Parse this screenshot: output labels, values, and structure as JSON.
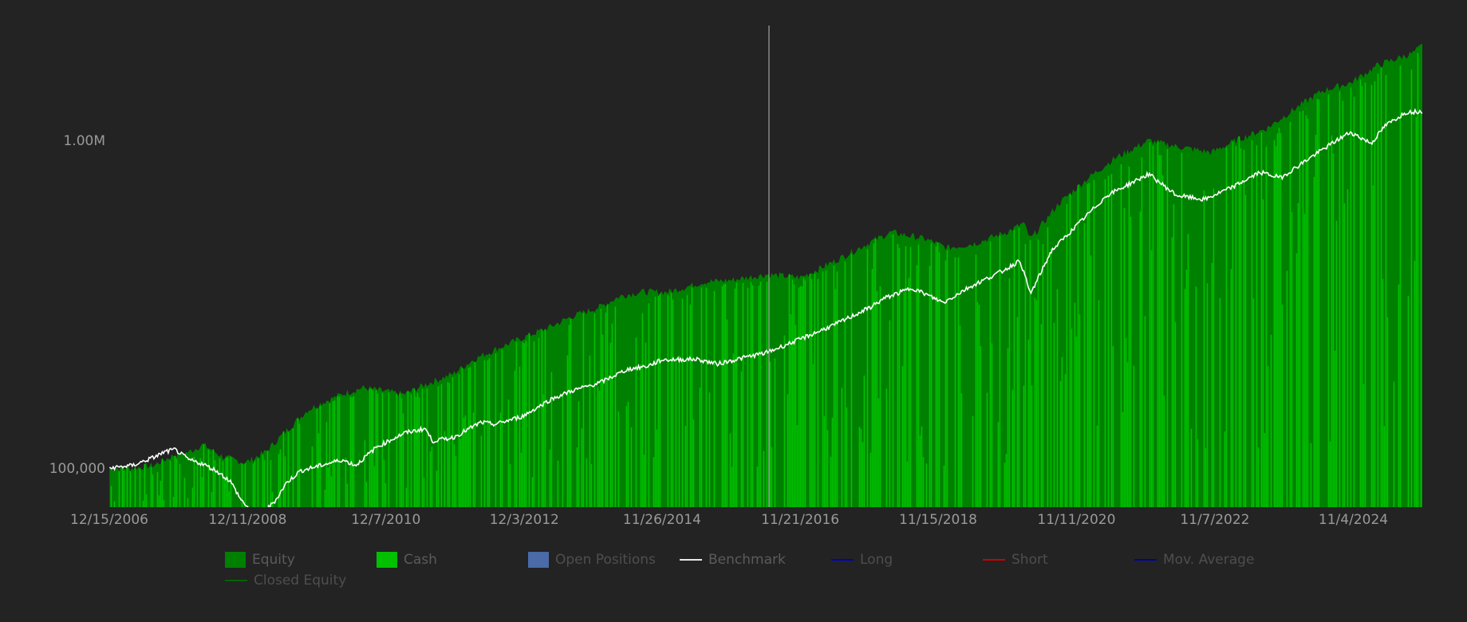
{
  "chart_data": {
    "type": "area",
    "x_axis": {
      "tick_labels": [
        "12/15/2006",
        "12/11/2008",
        "12/7/2010",
        "12/3/2012",
        "11/26/2014",
        "11/21/2016",
        "11/15/2018",
        "11/11/2020",
        "11/7/2022",
        "11/4/2024"
      ],
      "range": [
        "12/15/2006",
        "11/2025"
      ]
    },
    "y_axis": {
      "scale": "log",
      "tick_labels": [
        "1.00M",
        "100,000"
      ],
      "tick_values": [
        1000000,
        100000
      ],
      "range": [
        76000,
        2400000
      ]
    },
    "grid": false,
    "legend_placement": "bottom",
    "crosshair_x": "2016.44",
    "series": [
      {
        "name": "Equity",
        "color": "#008000",
        "x": [
          2006.96,
          2007.3,
          2007.6,
          2007.9,
          2008.1,
          2008.3,
          2008.6,
          2008.9,
          2009.0,
          2009.2,
          2009.5,
          2009.8,
          2010.0,
          2010.3,
          2010.6,
          2010.9,
          2011.2,
          2011.5,
          2011.9,
          2012.2,
          2012.6,
          2012.9,
          2013.3,
          2013.6,
          2014.0,
          2014.3,
          2014.6,
          2015.0,
          2015.5,
          2015.9,
          2016.4,
          2016.9,
          2017.4,
          2017.9,
          2018.2,
          2018.7,
          2019.0,
          2019.4,
          2019.9,
          2020.1,
          2020.2,
          2020.6,
          2021.0,
          2021.4,
          2021.9,
          2022.3,
          2022.8,
          2023.2,
          2023.6,
          2024.0,
          2024.4,
          2024.8,
          2025.2,
          2025.7,
          2025.9
        ],
        "values": [
          100000,
          100000,
          102000,
          110000,
          112000,
          118000,
          108000,
          104000,
          106000,
          112000,
          130000,
          150000,
          158000,
          168000,
          176000,
          172000,
          168000,
          180000,
          194000,
          215000,
          235000,
          250000,
          270000,
          290000,
          310000,
          335000,
          345000,
          345000,
          370000,
          375000,
          390000,
          382000,
          430000,
          490000,
          525000,
          500000,
          470000,
          485000,
          530000,
          560000,
          500000,
          640000,
          760000,
          880000,
          1000000,
          960000,
          920000,
          1010000,
          1090000,
          1250000,
          1420000,
          1500000,
          1700000,
          1850000,
          2000000
        ]
      },
      {
        "name": "Cash",
        "color": "#00c000",
        "values_description": ""
      },
      {
        "name": "Benchmark",
        "color": "#ffffff",
        "x": [
          2006.96,
          2007.3,
          2007.6,
          2007.75,
          2007.9,
          2008.1,
          2008.3,
          2008.5,
          2008.7,
          2008.85,
          2009.0,
          2009.1,
          2009.2,
          2009.35,
          2009.5,
          2009.7,
          2010.0,
          2010.3,
          2010.5,
          2010.8,
          2011.2,
          2011.5,
          2011.6,
          2011.9,
          2012.3,
          2012.5,
          2012.9,
          2013.3,
          2013.6,
          2014.0,
          2014.4,
          2014.7,
          2014.9,
          2015.4,
          2015.7,
          2016.1,
          2016.4,
          2016.9,
          2017.4,
          2017.9,
          2018.1,
          2018.5,
          2018.95,
          2019.3,
          2019.8,
          2020.05,
          2020.2,
          2020.5,
          2020.9,
          2021.3,
          2021.9,
          2022.3,
          2022.7,
          2023.1,
          2023.5,
          2023.8,
          2024.2,
          2024.6,
          2024.8,
          2025.1,
          2025.3,
          2025.6,
          2025.9
        ],
        "values": [
          100000,
          102000,
          108000,
          112000,
          114000,
          106000,
          103000,
          98000,
          91000,
          80000,
          74000,
          72000,
          74000,
          80000,
          90000,
          98000,
          102000,
          106000,
          102000,
          116000,
          128000,
          132000,
          121000,
          124000,
          138000,
          136000,
          144000,
          162000,
          172000,
          182000,
          200000,
          205000,
          214000,
          215000,
          208000,
          218000,
          225000,
          248000,
          275000,
          310000,
          330000,
          355000,
          320000,
          355000,
          400000,
          430000,
          340000,
          460000,
          560000,
          680000,
          790000,
          680000,
          660000,
          720000,
          800000,
          770000,
          880000,
          1000000,
          1060000,
          980000,
          1110000,
          1220000,
          1230000
        ]
      },
      {
        "name": "Open Positions",
        "color": "#4a6aa8"
      },
      {
        "name": "Long",
        "color": "#0000c0"
      },
      {
        "name": "Short",
        "color": "#d00000"
      },
      {
        "name": "Mov. Average",
        "color": "#0000a0"
      },
      {
        "name": "Closed Equity",
        "color": "#006400"
      }
    ]
  },
  "legend": {
    "items": [
      {
        "label": "Equity",
        "kind": "box",
        "color": "#008000",
        "active": true
      },
      {
        "label": "Cash",
        "kind": "box",
        "color": "#00c000",
        "active": true
      },
      {
        "label": "Open Positions",
        "kind": "box",
        "color": "#4a6aa8",
        "active": false
      },
      {
        "label": "Benchmark",
        "kind": "line",
        "color": "#e8e8e8",
        "active": true
      },
      {
        "label": "Long",
        "kind": "line",
        "color": "#0000c0",
        "active": false
      },
      {
        "label": "Short",
        "kind": "line",
        "color": "#d00000",
        "active": false
      },
      {
        "label": "Mov. Average",
        "kind": "line",
        "color": "#0000a0",
        "active": false
      },
      {
        "label": "Closed Equity",
        "kind": "line",
        "color": "#006400",
        "active": false
      }
    ]
  }
}
